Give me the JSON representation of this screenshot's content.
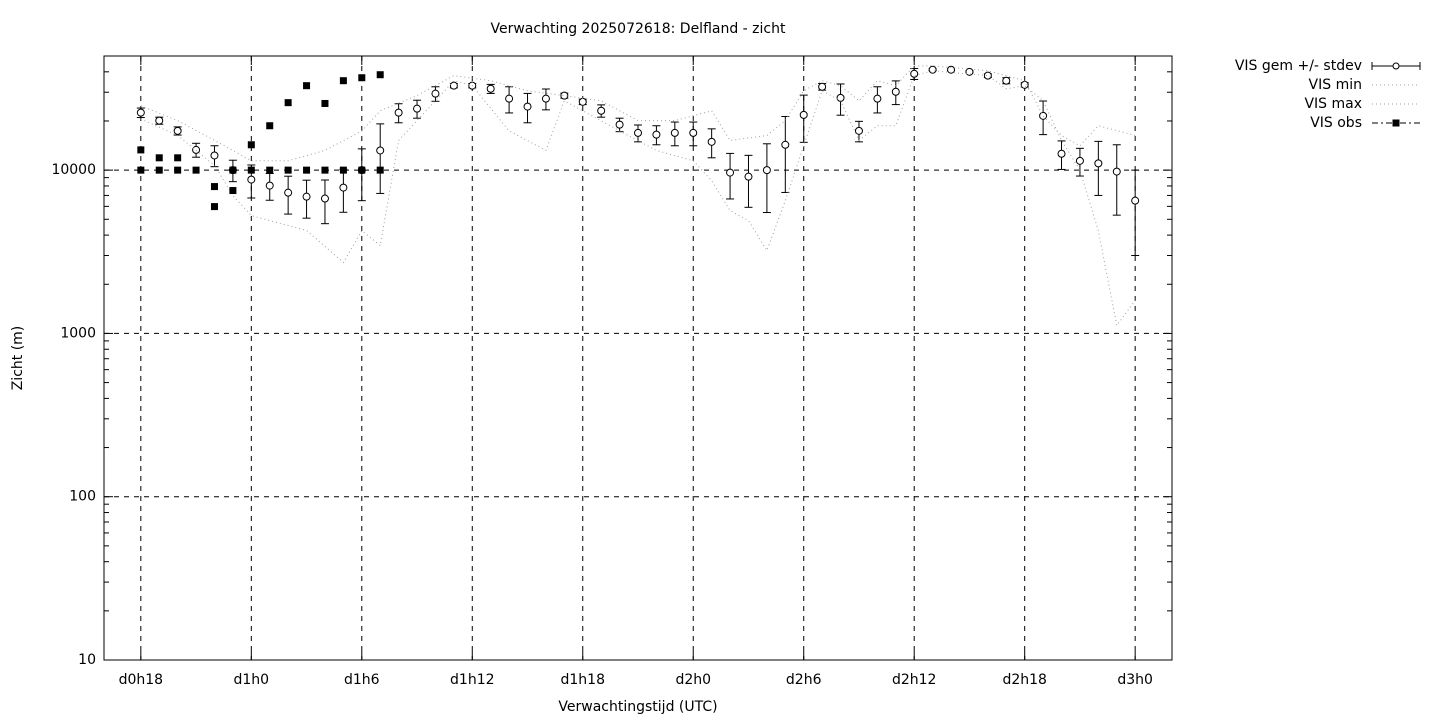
{
  "chart_data": {
    "type": "scatter",
    "title": "Verwachting 2025072618: Delfland - zicht",
    "xlabel": "Verwachtingstijd (UTC)",
    "ylabel": "Zicht (m)",
    "log_y": true,
    "grid": true,
    "legend": "outside-top-right",
    "xlim": [
      16,
      74
    ],
    "xticks": [
      {
        "value": 18,
        "label": "d0h18"
      },
      {
        "value": 24,
        "label": "d1h0"
      },
      {
        "value": 30,
        "label": "d1h6"
      },
      {
        "value": 36,
        "label": "d1h12"
      },
      {
        "value": 42,
        "label": "d1h18"
      },
      {
        "value": 48,
        "label": "d2h0"
      },
      {
        "value": 54,
        "label": "d2h6"
      },
      {
        "value": 60,
        "label": "d2h12"
      },
      {
        "value": 66,
        "label": "d2h18"
      },
      {
        "value": 72,
        "label": "d3h0"
      }
    ],
    "ylim": [
      10,
      50000
    ],
    "yticks": [
      10,
      100,
      1000,
      10000
    ],
    "series": [
      {
        "name": "VIS gem +/- stdev",
        "style": "errorbar",
        "color": "#000000",
        "x": [
          18,
          19,
          20,
          21,
          22,
          23,
          24,
          25,
          26,
          27,
          28,
          29,
          30,
          31,
          32,
          33,
          34,
          35,
          36,
          37,
          38,
          39,
          40,
          41,
          42,
          43,
          44,
          45,
          46,
          47,
          48,
          49,
          50,
          51,
          52,
          53,
          54,
          55,
          56,
          57,
          58,
          59,
          60,
          61,
          62,
          63,
          64,
          65,
          66,
          67,
          68,
          69,
          70,
          71,
          72
        ],
        "values": [
          22500,
          20100,
          17400,
          13300,
          12300,
          10000,
          8750,
          8040,
          7280,
          6880,
          6700,
          7820,
          10000,
          13200,
          22500,
          23800,
          29400,
          32900,
          32900,
          31500,
          27400,
          24500,
          27400,
          28600,
          26200,
          23100,
          19000,
          16900,
          16500,
          16900,
          16900,
          14900,
          9660,
          9120,
          10000,
          14300,
          21800,
          32400,
          27700,
          17400,
          27400,
          30200,
          38900,
          41200,
          41200,
          40000,
          37900,
          35300,
          33300,
          21500,
          12600,
          11400,
          11000,
          9800,
          6500
        ],
        "errors": [
          1500,
          1000,
          1000,
          1300,
          1800,
          1500,
          2000,
          1500,
          1900,
          1800,
          2000,
          2300,
          3500,
          6000,
          3000,
          3000,
          3000,
          1000,
          1000,
          2000,
          5000,
          5000,
          4000,
          1000,
          1000,
          2000,
          1800,
          2000,
          2200,
          2800,
          2800,
          3000,
          3000,
          3200,
          4500,
          7000,
          7000,
          1500,
          6000,
          2500,
          5000,
          5000,
          3000,
          500,
          500,
          500,
          1000,
          1500,
          1000,
          5000,
          2500,
          2200,
          4000,
          4500,
          3500
        ]
      },
      {
        "name": "VIS min",
        "style": "dotted",
        "color": "#a0a0a0",
        "x": [
          18,
          20,
          22,
          23,
          24,
          27,
          29,
          30,
          31,
          32,
          33,
          34,
          35,
          36,
          38,
          40,
          41,
          42,
          44,
          46,
          48,
          49,
          50,
          51,
          52,
          53,
          54,
          55,
          56,
          57,
          58,
          59,
          60,
          61,
          64,
          65,
          66,
          67,
          68,
          69,
          70,
          71,
          72
        ],
        "values": [
          20600,
          16300,
          10700,
          6980,
          5270,
          4270,
          2720,
          4270,
          3450,
          15200,
          20100,
          26600,
          35300,
          32900,
          17400,
          13200,
          26600,
          23100,
          17400,
          13200,
          11400,
          8620,
          5650,
          4910,
          3220,
          6500,
          14100,
          30600,
          26600,
          15200,
          18700,
          18700,
          37900,
          40600,
          37900,
          31500,
          32900,
          26600,
          15200,
          10000,
          4270,
          1120,
          1590
        ]
      },
      {
        "name": "VIS max",
        "style": "dotted",
        "color": "#a0a0a0",
        "x": [
          18,
          20,
          22,
          23,
          24,
          26,
          28,
          30,
          31,
          33,
          35,
          37,
          39,
          41,
          43,
          45,
          47,
          49,
          50,
          52,
          53,
          54,
          55,
          56,
          57,
          58,
          59,
          60,
          61,
          64,
          66,
          67,
          68,
          69,
          70,
          72
        ],
        "values": [
          24800,
          20100,
          15200,
          13200,
          11400,
          11400,
          13200,
          17400,
          23100,
          28600,
          37900,
          35300,
          30600,
          28600,
          26600,
          20100,
          20100,
          23100,
          15200,
          16300,
          20100,
          30600,
          35300,
          32900,
          26600,
          35300,
          32900,
          43500,
          43500,
          40600,
          35300,
          21500,
          16300,
          14100,
          18700,
          16300
        ]
      },
      {
        "name": "VIS obs",
        "style": "points",
        "color": "#000000",
        "x": [
          18,
          18,
          19,
          19,
          20,
          20,
          21,
          22,
          22,
          23,
          23,
          24,
          24,
          25,
          25,
          26,
          26,
          27,
          27,
          28,
          28,
          29,
          29,
          30,
          30,
          31,
          31
        ],
        "values": [
          13300,
          10000,
          11900,
          10000,
          11900,
          10000,
          10000,
          7930,
          5980,
          10000,
          7500,
          14300,
          10000,
          18700,
          10000,
          25900,
          10000,
          32900,
          10000,
          25600,
          10000,
          35300,
          10000,
          36800,
          10000,
          38400,
          10000
        ]
      }
    ]
  }
}
